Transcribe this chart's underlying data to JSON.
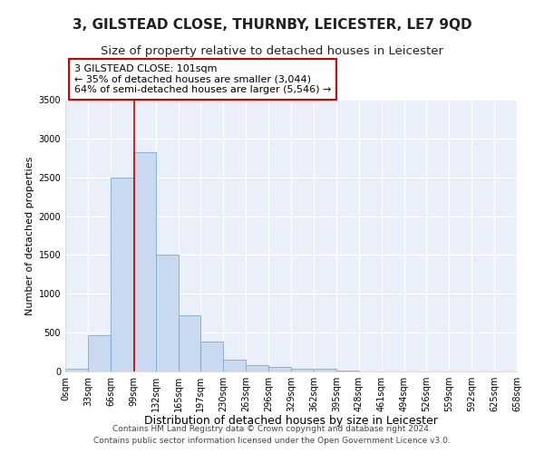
{
  "title": "3, GILSTEAD CLOSE, THURNBY, LEICESTER, LE7 9QD",
  "subtitle": "Size of property relative to detached houses in Leicester",
  "xlabel": "Distribution of detached houses by size in Leicester",
  "ylabel": "Number of detached properties",
  "bar_edges": [
    0,
    33,
    66,
    99,
    132,
    165,
    197,
    230,
    263,
    296,
    329,
    362,
    395,
    428,
    461,
    494,
    526,
    559,
    592,
    625,
    658
  ],
  "bar_heights": [
    30,
    470,
    2500,
    2820,
    1510,
    720,
    390,
    150,
    80,
    55,
    40,
    30,
    15,
    5,
    0,
    0,
    0,
    0,
    0,
    0
  ],
  "bar_color": "#c8d9f0",
  "bar_edge_color": "#7aaad4",
  "property_line_x": 101,
  "property_line_color": "#cc0000",
  "annotation_line1": "3 GILSTEAD CLOSE: 101sqm",
  "annotation_line2": "← 35% of detached houses are smaller (3,044)",
  "annotation_line3": "64% of semi-detached houses are larger (5,546) →",
  "annotation_box_color": "#ffffff",
  "annotation_box_edge_color": "#cc0000",
  "ylim": [
    0,
    3500
  ],
  "yticks": [
    0,
    500,
    1000,
    1500,
    2000,
    2500,
    3000,
    3500
  ],
  "tick_labels": [
    "0sqm",
    "33sqm",
    "66sqm",
    "99sqm",
    "132sqm",
    "165sqm",
    "197sqm",
    "230sqm",
    "263sqm",
    "296sqm",
    "329sqm",
    "362sqm",
    "395sqm",
    "428sqm",
    "461sqm",
    "494sqm",
    "526sqm",
    "559sqm",
    "592sqm",
    "625sqm",
    "658sqm"
  ],
  "footer_line1": "Contains HM Land Registry data © Crown copyright and database right 2024.",
  "footer_line2": "Contains public sector information licensed under the Open Government Licence v3.0.",
  "bg_color": "#eaf0f9",
  "title_fontsize": 11,
  "subtitle_fontsize": 9.5,
  "xlabel_fontsize": 9,
  "ylabel_fontsize": 8,
  "tick_fontsize": 7,
  "annotation_fontsize": 8,
  "footer_fontsize": 6.5
}
